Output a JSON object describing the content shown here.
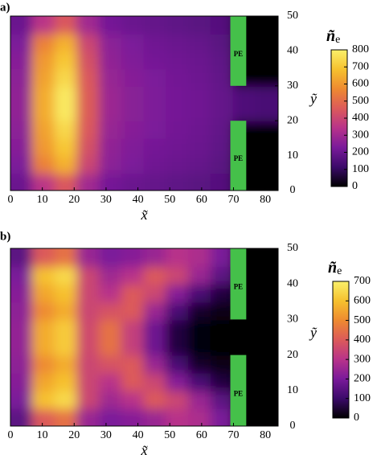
{
  "chart_data": [
    {
      "type": "heatmap",
      "panel_label": "a)",
      "xlabel": "x̃",
      "ylabel": "ỹ",
      "xlim": [
        0,
        84
      ],
      "ylim": [
        0,
        50
      ],
      "xticks": [
        0,
        10,
        20,
        30,
        40,
        50,
        60,
        70,
        80
      ],
      "yticks": [
        0,
        10,
        20,
        30,
        40,
        50
      ],
      "x": [
        3.5,
        10.5,
        17.5,
        24.5,
        31.5,
        38.5,
        45.5,
        52.5,
        59.5,
        66.5,
        73.5,
        80.5
      ],
      "y": [
        2.5,
        7.5,
        12.5,
        17.5,
        22.5,
        27.5,
        32.5,
        37.5,
        42.5,
        47.5
      ],
      "z": [
        [
          200,
          350,
          450,
          300,
          220,
          200,
          190,
          180,
          170,
          160,
          0,
          0
        ],
        [
          230,
          550,
          650,
          400,
          260,
          230,
          210,
          200,
          190,
          170,
          0,
          0
        ],
        [
          250,
          600,
          700,
          430,
          270,
          240,
          220,
          210,
          200,
          180,
          0,
          0
        ],
        [
          260,
          620,
          740,
          450,
          280,
          250,
          230,
          215,
          205,
          185,
          0,
          0
        ],
        [
          270,
          640,
          780,
          460,
          290,
          255,
          235,
          220,
          210,
          190,
          150,
          140
        ],
        [
          270,
          640,
          780,
          460,
          290,
          255,
          235,
          220,
          210,
          190,
          150,
          140
        ],
        [
          260,
          620,
          740,
          450,
          280,
          250,
          230,
          215,
          205,
          185,
          0,
          0
        ],
        [
          250,
          600,
          700,
          430,
          270,
          240,
          220,
          210,
          200,
          180,
          0,
          0
        ],
        [
          230,
          550,
          650,
          400,
          260,
          230,
          210,
          200,
          190,
          170,
          0,
          0
        ],
        [
          200,
          350,
          450,
          300,
          220,
          200,
          190,
          180,
          170,
          160,
          0,
          0
        ]
      ],
      "colorbar_label": {
        "symbol": "ñ",
        "subscript": "e"
      },
      "clim": [
        0,
        800
      ],
      "cticks": [
        0,
        100,
        200,
        300,
        400,
        500,
        600,
        700,
        800
      ],
      "colormap": [
        "#000000",
        "#3b0a6a",
        "#7a1a9a",
        "#b8338a",
        "#dc5a5a",
        "#ee8a30",
        "#f6c12e",
        "#faf06a"
      ],
      "electrode_color": "#45c04a",
      "electrodes": [
        {
          "label": "PE",
          "x": [
            69,
            74
          ],
          "y": [
            30,
            50
          ]
        },
        {
          "label": "PE",
          "x": [
            69,
            74
          ],
          "y": [
            0,
            20
          ]
        }
      ]
    },
    {
      "type": "heatmap",
      "panel_label": "b)",
      "xlabel": "x̃",
      "ylabel": "ỹ",
      "xlim": [
        0,
        84
      ],
      "ylim": [
        0,
        50
      ],
      "xticks": [
        0,
        10,
        20,
        30,
        40,
        50,
        60,
        70,
        80
      ],
      "yticks": [
        0,
        10,
        20,
        30,
        40,
        50
      ],
      "x": [
        3.5,
        10.5,
        17.5,
        24.5,
        31.5,
        38.5,
        45.5,
        52.5,
        59.5,
        66.5,
        73.5,
        80.5
      ],
      "y": [
        2.5,
        7.5,
        12.5,
        17.5,
        22.5,
        27.5,
        32.5,
        37.5,
        42.5,
        47.5
      ],
      "z": [
        [
          150,
          400,
          450,
          250,
          200,
          220,
          250,
          300,
          280,
          200,
          0,
          0
        ],
        [
          200,
          600,
          650,
          350,
          260,
          300,
          400,
          350,
          250,
          150,
          0,
          0
        ],
        [
          220,
          550,
          600,
          350,
          300,
          400,
          350,
          220,
          120,
          60,
          0,
          0
        ],
        [
          230,
          500,
          560,
          350,
          380,
          400,
          250,
          120,
          40,
          20,
          0,
          0
        ],
        [
          240,
          560,
          620,
          360,
          450,
          330,
          180,
          60,
          10,
          0,
          0,
          0
        ],
        [
          240,
          560,
          620,
          360,
          450,
          330,
          180,
          60,
          10,
          0,
          0,
          0
        ],
        [
          230,
          500,
          560,
          350,
          380,
          400,
          250,
          120,
          40,
          20,
          0,
          0
        ],
        [
          220,
          550,
          600,
          350,
          300,
          400,
          350,
          220,
          120,
          60,
          0,
          0
        ],
        [
          200,
          600,
          650,
          350,
          260,
          300,
          400,
          350,
          250,
          150,
          0,
          0
        ],
        [
          150,
          400,
          450,
          250,
          200,
          220,
          250,
          300,
          280,
          200,
          0,
          0
        ]
      ],
      "colorbar_label": {
        "symbol": "ñ",
        "subscript": "e"
      },
      "clim": [
        0,
        700
      ],
      "cticks": [
        0,
        100,
        200,
        300,
        400,
        500,
        600,
        700
      ],
      "colormap": [
        "#000000",
        "#3b0a6a",
        "#7a1a9a",
        "#b8338a",
        "#dc5a5a",
        "#ee8a30",
        "#f6c12e",
        "#faf06a"
      ],
      "electrode_color": "#45c04a",
      "electrodes": [
        {
          "label": "PE",
          "x": [
            69,
            74
          ],
          "y": [
            30,
            50
          ]
        },
        {
          "label": "PE",
          "x": [
            69,
            74
          ],
          "y": [
            0,
            20
          ]
        }
      ]
    }
  ]
}
